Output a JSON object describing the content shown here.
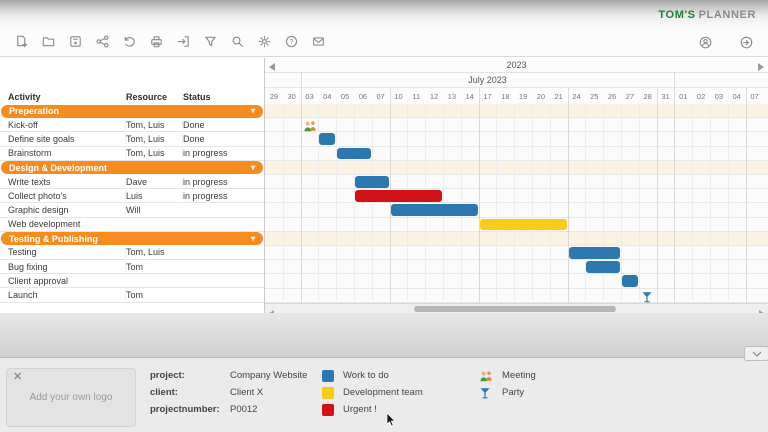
{
  "header": {
    "brand_bold": "TOM'S",
    "brand_light": "PLANNER"
  },
  "toolbar": {
    "left_icons": [
      "new-file",
      "open-folder",
      "save",
      "share",
      "undo",
      "print",
      "sign-in",
      "filter",
      "search",
      "settings",
      "help",
      "email"
    ],
    "right_icons": [
      "account",
      "sign-out"
    ]
  },
  "table": {
    "columns": [
      "Activity",
      "Resource",
      "Status"
    ],
    "rows": [
      {
        "type": "section",
        "activity": "Preperation"
      },
      {
        "type": "task",
        "activity": "Kick-off",
        "resource": "Tom, Luis",
        "status": "Done"
      },
      {
        "type": "task",
        "activity": "Define site goals",
        "resource": "Tom, Luis",
        "status": "Done"
      },
      {
        "type": "task",
        "activity": "Brainstorm",
        "resource": "Tom, Luis",
        "status": "in progress"
      },
      {
        "type": "section",
        "activity": "Design & Development"
      },
      {
        "type": "task",
        "activity": "Write texts",
        "resource": "Dave",
        "status": "in progress"
      },
      {
        "type": "task",
        "activity": "Collect photo's",
        "resource": "Luis",
        "status": "in progress"
      },
      {
        "type": "task",
        "activity": "Graphic design",
        "resource": "Will",
        "status": ""
      },
      {
        "type": "task",
        "activity": "Web development",
        "resource": "",
        "status": ""
      },
      {
        "type": "section",
        "activity": "Testing & Publishing"
      },
      {
        "type": "task",
        "activity": "Testing",
        "resource": "Tom, Luis",
        "status": ""
      },
      {
        "type": "task",
        "activity": "Bug fixing",
        "resource": "Tom",
        "status": ""
      },
      {
        "type": "task",
        "activity": "Client approval",
        "resource": "",
        "status": ""
      },
      {
        "type": "task",
        "activity": "Launch",
        "resource": "Tom",
        "status": ""
      }
    ]
  },
  "timeline": {
    "year_label": "2023",
    "month_label": "July 2023",
    "days": [
      "29",
      "30",
      "03",
      "04",
      "05",
      "06",
      "07",
      "10",
      "11",
      "12",
      "13",
      "14",
      "17",
      "18",
      "19",
      "20",
      "21",
      "24",
      "25",
      "26",
      "27",
      "28",
      "31",
      "01",
      "02",
      "03",
      "04",
      "07"
    ],
    "week_breaks_after": [
      1,
      6,
      11,
      16,
      21,
      22,
      26
    ],
    "month_span_cols": [
      2,
      22
    ]
  },
  "gantt": {
    "bars": [
      {
        "row": 2,
        "col": 3,
        "span": 1,
        "color": "blue"
      },
      {
        "row": 3,
        "col": 4,
        "span": 2,
        "color": "blue"
      },
      {
        "row": 5,
        "col": 5,
        "span": 2,
        "color": "blue"
      },
      {
        "row": 6,
        "col": 5,
        "span": 5,
        "color": "red"
      },
      {
        "row": 7,
        "col": 7,
        "span": 5,
        "color": "blue"
      },
      {
        "row": 8,
        "col": 12,
        "span": 5,
        "color": "yellow"
      },
      {
        "row": 10,
        "col": 17,
        "span": 3,
        "color": "blue"
      },
      {
        "row": 11,
        "col": 18,
        "span": 2,
        "color": "blue"
      },
      {
        "row": 12,
        "col": 20,
        "span": 1,
        "color": "blue"
      }
    ],
    "markers": [
      {
        "row": 1,
        "col": 2,
        "icon": "meeting"
      },
      {
        "row": 13,
        "col": 21,
        "icon": "party"
      }
    ],
    "section_row_indexes": [
      0,
      4,
      9
    ]
  },
  "colors": {
    "blue": "#2d77b0",
    "yellow": "#f9cd17",
    "red": "#d01217",
    "orange": "#f68b1f",
    "brand_green": "#1e7e34"
  },
  "footer": {
    "logo_placeholder": "Add your own logo",
    "info": [
      {
        "label": "project:",
        "value": "Company Website"
      },
      {
        "label": "client:",
        "value": "Client X"
      },
      {
        "label": "projectnumber:",
        "value": "P0012"
      }
    ],
    "legend_swatches": [
      {
        "color": "blue",
        "label": "Work to do"
      },
      {
        "color": "yellow",
        "label": "Development team"
      },
      {
        "color": "red",
        "label": "Urgent !"
      }
    ],
    "legend_icons": [
      {
        "icon": "meeting",
        "label": "Meeting"
      },
      {
        "icon": "party",
        "label": "Party"
      }
    ]
  }
}
